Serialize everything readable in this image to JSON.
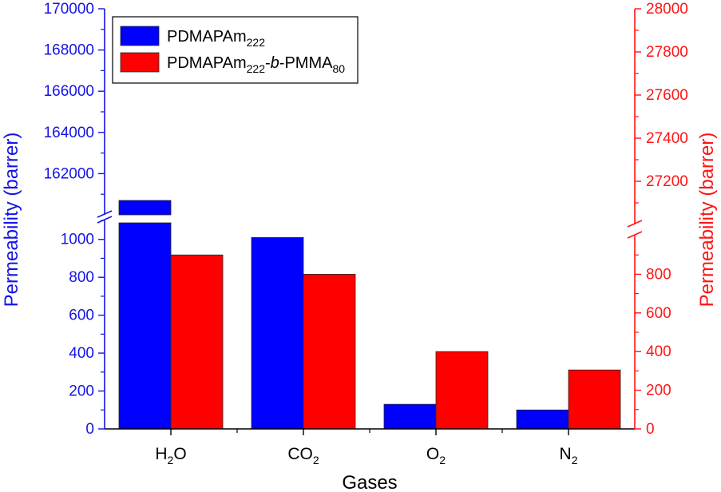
{
  "chart_data": {
    "type": "bar",
    "xlabel": "Gases",
    "categories": [
      {
        "base": "H",
        "sub": "2",
        "tail": "O"
      },
      {
        "base": "CO",
        "sub": "2",
        "tail": ""
      },
      {
        "base": "O",
        "sub": "2",
        "tail": ""
      },
      {
        "base": "N",
        "sub": "2",
        "tail": ""
      }
    ],
    "y_left": {
      "label": "Permeability (barrer)",
      "color": "#1414E6",
      "lower_range": [
        0,
        1100
      ],
      "lower_ticks": [
        "0",
        "200",
        "400",
        "600",
        "800",
        "1000"
      ],
      "upper_range": [
        160000,
        170000
      ],
      "upper_ticks": [
        "162000",
        "164000",
        "166000",
        "168000",
        "170000"
      ]
    },
    "y_right": {
      "label": "Permeability (barrer)",
      "color": "#FF1414",
      "lower_range": [
        0,
        1000
      ],
      "lower_ticks": [
        "0",
        "200",
        "400",
        "600",
        "800"
      ],
      "upper_range": [
        27000,
        28000
      ],
      "upper_ticks": [
        "27200",
        "27400",
        "27600",
        "27800",
        "28000"
      ]
    },
    "series": [
      {
        "name": {
          "pre": "PDMAPAm",
          "sub1": "222",
          "mid": "",
          "italic": "",
          "post": "",
          "sub2": ""
        },
        "axis": "left",
        "color": "#0000FF",
        "values": [
          160700,
          1010,
          130,
          100
        ]
      },
      {
        "name": {
          "pre": "PDMAPAm",
          "sub1": "222",
          "mid": "-",
          "italic": "b",
          "post": "-PMMA",
          "sub2": "80"
        },
        "axis": "right",
        "color": "#FF0000",
        "values": [
          900,
          800,
          400,
          305
        ]
      }
    ],
    "legend_position": "top-left",
    "grid": false
  }
}
